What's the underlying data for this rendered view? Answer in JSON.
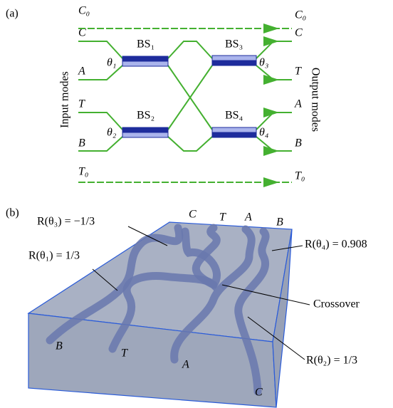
{
  "panel_a": {
    "label": "(a)",
    "input_modes_title": "Input modes",
    "output_modes_title": "Output modes",
    "inputs": [
      "C₀",
      "C",
      "A",
      "T",
      "B",
      "T₀"
    ],
    "outputs": [
      "C₀",
      "C",
      "T",
      "A",
      "B",
      "T₀"
    ],
    "beam_splitters": [
      {
        "name": "BS₁",
        "angle": "θ₁"
      },
      {
        "name": "BS₂",
        "angle": "θ₂"
      },
      {
        "name": "BS₃",
        "angle": "θ₃"
      },
      {
        "name": "BS₄",
        "angle": "θ₄"
      }
    ]
  },
  "panel_b": {
    "label": "(b)",
    "top_ports": [
      "C",
      "T",
      "A",
      "B"
    ],
    "bottom_ports": [
      "B",
      "T",
      "A",
      "C"
    ],
    "annotations": [
      "R(θ₃) = −1/3",
      "R(θ₁) = 1/3",
      "R(θ₄) = 0.908",
      "Crossover",
      "R(θ₂) = 1/3"
    ]
  }
}
